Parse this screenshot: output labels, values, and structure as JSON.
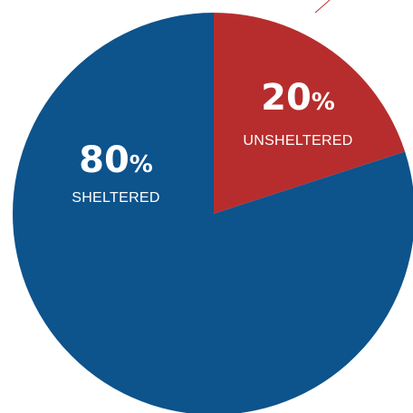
{
  "chart_data": {
    "type": "pie",
    "categories": [
      "UNSHELTERED",
      "SHELTERED"
    ],
    "values": [
      20,
      80
    ],
    "value_labels": [
      "20",
      "80"
    ],
    "percent_sign": "%",
    "colors": [
      "#b72d2d",
      "#0d538c"
    ],
    "start": "12 o'clock",
    "direction": "clockwise",
    "legend": "none"
  },
  "colors": {
    "callout_line": "#c0302f"
  }
}
